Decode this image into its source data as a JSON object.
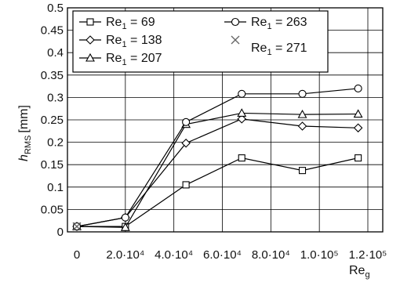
{
  "chart_data": {
    "type": "line",
    "xlabel": "Re",
    "xlabel_sub": "g",
    "ylabel": "h",
    "ylabel_sub": "RMS",
    "ylabel_unit": "[mm]",
    "xlim": [
      0,
      120000
    ],
    "ylim": [
      0,
      0.5
    ],
    "grid": true,
    "legend_position": "top-left",
    "x_ticks": [
      0,
      20000,
      40000,
      60000,
      80000,
      100000,
      120000
    ],
    "x_tick_labels": [
      "0",
      "2.0·10⁴",
      "4.0·10⁴",
      "6.0·10⁴",
      "8.0·10⁴",
      "1.0·10⁵",
      "1.2·10⁵"
    ],
    "y_ticks": [
      0,
      0.05,
      0.1,
      0.15,
      0.2,
      0.25,
      0.3,
      0.35,
      0.4,
      0.45,
      0.5
    ],
    "y_tick_labels": [
      "0",
      "0.05",
      "0.1",
      "0.15",
      "0.2",
      "0.25",
      "0.3",
      "0.35",
      "0.4",
      "0.45",
      "0.5"
    ],
    "x": [
      0,
      20000,
      45000,
      68000,
      93000,
      116000
    ],
    "series": [
      {
        "name": "Re₁ = 69",
        "legend_prefix": "Re",
        "legend_sub": "1",
        "legend_value": " = 69",
        "marker": "square",
        "values": [
          0.012,
          0.012,
          0.105,
          0.165,
          0.137,
          0.165
        ]
      },
      {
        "name": "Re₁ = 138",
        "legend_prefix": "Re",
        "legend_sub": "1",
        "legend_value": " = 138",
        "marker": "diamond",
        "values": [
          0.012,
          0.032,
          0.198,
          0.252,
          0.236,
          0.232
        ]
      },
      {
        "name": "Re₁ = 207",
        "legend_prefix": "Re",
        "legend_sub": "1",
        "legend_value": " = 207",
        "marker": "triangle",
        "values": [
          0.012,
          0.01,
          0.24,
          0.265,
          0.262,
          0.263
        ]
      },
      {
        "name": "Re₁ = 263",
        "legend_prefix": "Re",
        "legend_sub": "1",
        "legend_value": " = 263",
        "marker": "circle",
        "values": [
          0.012,
          0.032,
          0.245,
          0.308,
          0.308,
          0.32
        ]
      },
      {
        "name": "Re₁ = 271",
        "legend_prefix": "Re",
        "legend_sub": "1",
        "legend_value": " = 271",
        "marker": "x",
        "values": [
          0.012,
          null,
          null,
          null,
          null,
          null
        ]
      }
    ]
  }
}
